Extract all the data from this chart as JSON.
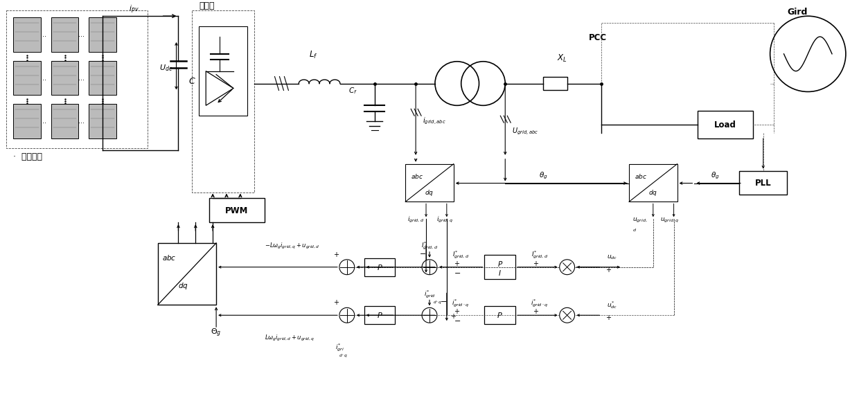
{
  "bg_color": "#ffffff",
  "pv_array_label": "光伏阵列",
  "inverter_label": "逆变器",
  "ipv_label": "$i_{pv}$",
  "udc_label": "$U_{dc}$",
  "C_label": "$C$",
  "Lf_label": "$\\boldsymbol{L_f}$",
  "Cf_label": "$\\boldsymbol{C_f}$",
  "igrid_abc_label": "$i_{grid,abc}$",
  "Ugrid_abc_label": "$U_{grid,abc}$",
  "XL_label": "$\\boldsymbol{X_L}$",
  "PCC_label": "PCC",
  "Gird_label": "Gird",
  "Load_label": "Load",
  "PLL_label": "PLL",
  "PWM_label": "PWM",
  "theta_g": "$\\theta_g$",
  "igrid_d_label": "$i_{grid,d}$",
  "igrid_q_label": "$i_{grid,q}$",
  "ugrid_d_label": "$u_{grid,}$",
  "ugrid_d2_label": "$_{d}$",
  "ugrid_q_label": "$u_{grid,q}$",
  "Igrid_d_star": "$I_{grid,d}^{*}$",
  "igrid_q_star": "$i_{grid\\cdot q}^{*}$",
  "udc_feed": "$u_{dc}$",
  "udc_star": "$u_{dc}^{*}$",
  "decoupling_d": "$-L\\omega_g i_{grid,q}+u_{grid,d}$",
  "decoupling_q": "$L\\omega_g i_{grid,d}+u_{grid,q}$",
  "Theta_g_bottom": "$\\Theta_g$",
  "Igrid_d_ref": "$I_{grid,d}^{*}$",
  "PI_label": "$P$\n$I$",
  "P_label": "$P$"
}
